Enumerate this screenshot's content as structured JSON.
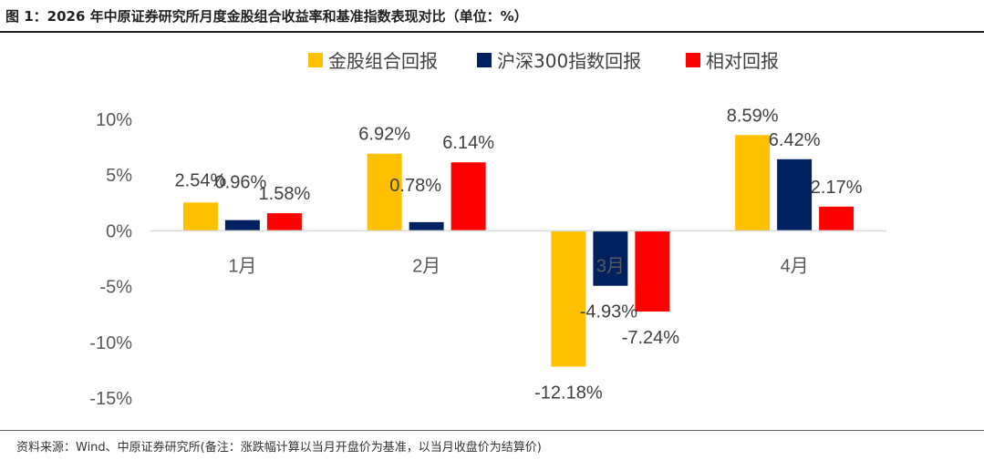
{
  "title": "图 1：2026 年中原证券研究所月度金股组合收益率和基准指数表现对比（单位：%）",
  "source": "资料来源：Wind、中原证券研究所(备注：涨跌幅计算以当月开盘价为基准，以当月收盘价为结算价)",
  "chart_data": {
    "type": "bar",
    "categories": [
      "1月",
      "2月",
      "3月",
      "4月"
    ],
    "series": [
      {
        "name": "金股组合回报",
        "color": "#FFC000",
        "values": [
          2.54,
          6.92,
          -12.18,
          8.59
        ],
        "labels": [
          "2.54%",
          "6.92%",
          "-12.18%",
          "8.59%"
        ]
      },
      {
        "name": "沪深300指数回报",
        "color": "#002060",
        "values": [
          0.96,
          0.78,
          -4.93,
          6.42
        ],
        "labels": [
          "0.96%",
          "0.78%",
          "-4.93%",
          "6.42%"
        ]
      },
      {
        "name": "相对回报",
        "color": "#FF0000",
        "values": [
          1.58,
          6.14,
          -7.24,
          2.17
        ],
        "labels": [
          "1.58%",
          "6.14%",
          "-7.24%",
          "2.17%"
        ]
      }
    ],
    "ylim": [
      -15,
      10
    ],
    "yticks": [
      10,
      5,
      0,
      -5,
      -10,
      -15
    ],
    "ytick_labels": [
      "10%",
      "5%",
      "0%",
      "-5%",
      "-10%",
      "-15%"
    ],
    "legend_position": "top",
    "grid": false
  }
}
